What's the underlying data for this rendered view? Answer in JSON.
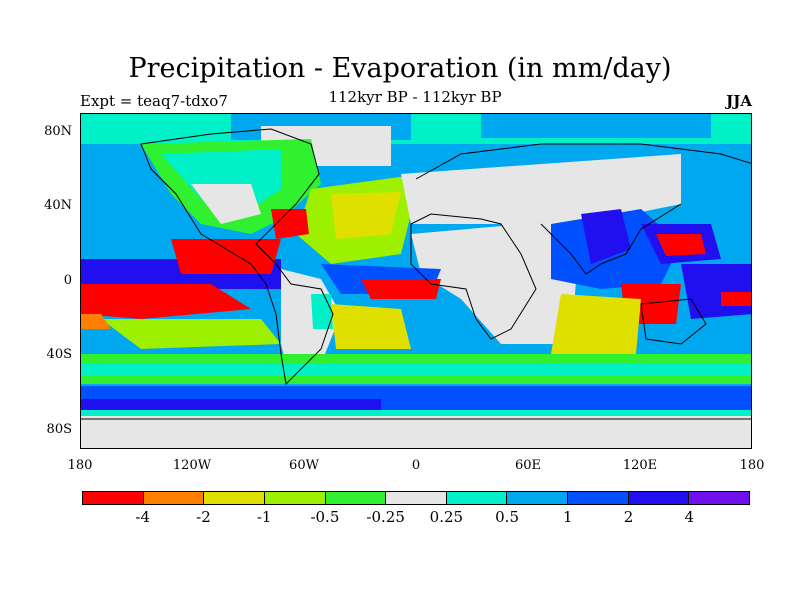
{
  "title": "Precipitation - Evaporation (in mm/day)",
  "expt": "Expt = teaq7-tdxo7",
  "subtitle": "112kyr BP - 112kyr BP",
  "season": "JJA",
  "axes": {
    "lat_labels": [
      "80N",
      "40N",
      "0",
      "40S",
      "80S"
    ],
    "lon_labels": [
      "180",
      "120W",
      "60W",
      "0",
      "60E",
      "120E",
      "180"
    ]
  },
  "colorbar": {
    "colors": [
      "#ff0000",
      "#ff8000",
      "#e0e000",
      "#9cf000",
      "#30f030",
      "#e6e6e6",
      "#00f0c8",
      "#00a8f0",
      "#0050ff",
      "#2010f0",
      "#7010f0"
    ],
    "labels": [
      "-4",
      "-2",
      "-1",
      "-0.5",
      "-0.25",
      "0.25",
      "0.5",
      "1",
      "2",
      "4"
    ]
  }
}
